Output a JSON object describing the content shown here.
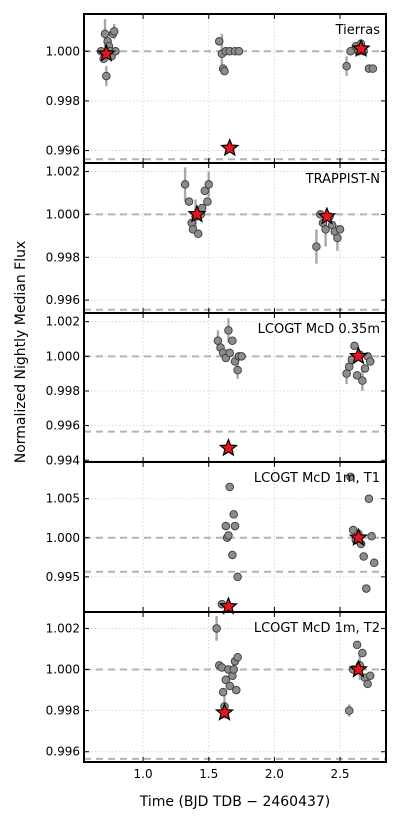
{
  "figure": {
    "xlabel": "Time (BJD TDB − 2460437)",
    "ylabel": "Normalized Nightly Median Flux"
  },
  "chart_data": [
    {
      "type": "scatter",
      "title": "Tierras",
      "xlim": [
        0.55,
        2.85
      ],
      "ylim": [
        0.9955,
        1.0015
      ],
      "yticks": [
        "0.996",
        "0.998",
        "1.000"
      ],
      "xticks": [],
      "reference_lines": [
        1.0,
        0.99565
      ],
      "points": [
        [
          0.68,
          1.0
        ],
        [
          0.7,
          0.9997
        ],
        [
          0.71,
          1.0007
        ],
        [
          0.72,
          0.999
        ],
        [
          0.73,
          1.0004
        ],
        [
          0.74,
          1.0002
        ],
        [
          0.75,
          1.0
        ],
        [
          0.76,
          0.9998
        ],
        [
          0.77,
          1.0007
        ],
        [
          0.78,
          1.0008
        ],
        [
          0.79,
          1.0
        ],
        [
          1.58,
          1.0004
        ],
        [
          1.6,
          0.9999
        ],
        [
          1.61,
          0.9993
        ],
        [
          1.62,
          0.9992
        ],
        [
          1.63,
          1.0
        ],
        [
          1.66,
          1.0
        ],
        [
          1.7,
          1.0
        ],
        [
          1.73,
          1.0
        ],
        [
          2.55,
          0.9994
        ],
        [
          2.58,
          1.0
        ],
        [
          2.62,
          1.0002
        ],
        [
          2.64,
          1.0
        ],
        [
          2.66,
          1.0003
        ],
        [
          2.68,
          1.0
        ],
        [
          2.72,
          0.9993
        ],
        [
          2.75,
          0.9993
        ]
      ],
      "errors": [
        [
          0.71,
          1.0007,
          0.0006
        ],
        [
          0.72,
          0.999,
          0.0004
        ],
        [
          0.78,
          1.0008,
          0.0003
        ],
        [
          1.6,
          0.9999,
          0.0008
        ],
        [
          2.55,
          0.9994,
          0.0004
        ]
      ],
      "medians": [
        [
          0.72,
          0.9999
        ],
        [
          1.66,
          0.9961
        ],
        [
          2.66,
          1.0001
        ]
      ]
    },
    {
      "type": "scatter",
      "title": "TRAPPIST-N",
      "xlim": [
        0.55,
        2.85
      ],
      "ylim": [
        0.9954,
        1.0024
      ],
      "yticks": [
        "0.996",
        "0.998",
        "1.000",
        "1.002"
      ],
      "xticks": [],
      "reference_lines": [
        1.0,
        0.99555
      ],
      "points": [
        [
          1.32,
          1.0014
        ],
        [
          1.35,
          1.0006
        ],
        [
          1.37,
          0.9996
        ],
        [
          1.38,
          0.9993
        ],
        [
          1.4,
          0.9999
        ],
        [
          1.42,
          0.9991
        ],
        [
          1.44,
          1.0
        ],
        [
          1.45,
          1.0003
        ],
        [
          1.47,
          1.0011
        ],
        [
          1.49,
          1.0006
        ],
        [
          1.5,
          1.0014
        ],
        [
          2.32,
          0.9985
        ],
        [
          2.35,
          1.0
        ],
        [
          2.37,
          0.9996
        ],
        [
          2.39,
          0.9993
        ],
        [
          2.4,
          0.9999
        ],
        [
          2.42,
          0.9999
        ],
        [
          2.44,
          0.9995
        ],
        [
          2.46,
          0.9992
        ],
        [
          2.48,
          0.9989
        ],
        [
          2.5,
          0.9993
        ]
      ],
      "errors": [
        [
          1.32,
          1.0014,
          0.0008
        ],
        [
          1.4,
          0.9999,
          0.0008
        ],
        [
          1.5,
          1.0014,
          0.0006
        ],
        [
          2.32,
          0.9985,
          0.0008
        ],
        [
          2.39,
          0.9993,
          0.0008
        ],
        [
          2.48,
          0.9989,
          0.0006
        ]
      ],
      "medians": [
        [
          1.41,
          1.0
        ],
        [
          2.4,
          0.9999
        ]
      ]
    },
    {
      "type": "scatter",
      "title": "LCOGT McD 0.35m",
      "xlim": [
        0.55,
        2.85
      ],
      "ylim": [
        0.9939,
        1.0025
      ],
      "yticks": [
        "0.994",
        "0.996",
        "0.998",
        "1.000",
        "1.002"
      ],
      "xticks": [],
      "reference_lines": [
        1.0,
        0.99565
      ],
      "points": [
        [
          1.57,
          1.0009
        ],
        [
          1.59,
          1.0005
        ],
        [
          1.61,
          1.0002
        ],
        [
          1.63,
          0.9999
        ],
        [
          1.65,
          1.0015
        ],
        [
          1.66,
          1.0002
        ],
        [
          1.68,
          1.0009
        ],
        [
          1.7,
          0.9997
        ],
        [
          1.72,
          0.9992
        ],
        [
          1.73,
          1.0
        ],
        [
          1.75,
          1.0
        ],
        [
          2.55,
          0.999
        ],
        [
          2.57,
          0.9994
        ],
        [
          2.59,
          0.9998
        ],
        [
          2.61,
          1.0006
        ],
        [
          2.63,
          0.9989
        ],
        [
          2.65,
          1.0001
        ],
        [
          2.67,
          0.9986
        ],
        [
          2.69,
          0.9993
        ],
        [
          2.71,
          1.0
        ],
        [
          2.73,
          0.9997
        ]
      ],
      "errors": [
        [
          1.57,
          1.0009,
          0.0006
        ],
        [
          1.65,
          1.0015,
          0.0007
        ],
        [
          1.72,
          0.9992,
          0.0005
        ],
        [
          2.55,
          0.999,
          0.0006
        ],
        [
          2.67,
          0.9986,
          0.0006
        ]
      ],
      "medians": [
        [
          1.65,
          0.9947
        ],
        [
          2.64,
          1.0
        ]
      ]
    },
    {
      "type": "scatter",
      "title": "LCOGT McD 1m, T1",
      "xlim": [
        0.55,
        2.85
      ],
      "ylim": [
        0.9905,
        1.0097
      ],
      "yticks": [
        "0.995",
        "1.000",
        "1.005"
      ],
      "xticks": [],
      "reference_lines": [
        1.0,
        0.99565
      ],
      "points": [
        [
          1.6,
          0.9915
        ],
        [
          1.63,
          1.0015
        ],
        [
          1.64,
          1.0
        ],
        [
          1.65,
          1.0003
        ],
        [
          1.66,
          1.0065
        ],
        [
          1.68,
          0.9978
        ],
        [
          1.69,
          1.003
        ],
        [
          1.7,
          1.0015
        ],
        [
          1.72,
          0.995
        ],
        [
          2.58,
          1.0078
        ],
        [
          2.6,
          1.001
        ],
        [
          2.62,
          0.9997
        ],
        [
          2.64,
          1.0005
        ],
        [
          2.66,
          0.9992
        ],
        [
          2.68,
          0.9976
        ],
        [
          2.7,
          0.9935
        ],
        [
          2.72,
          1.005
        ],
        [
          2.74,
          1.0002
        ],
        [
          2.76,
          0.9968
        ]
      ],
      "errors": [],
      "medians": [
        [
          1.65,
          0.9912
        ],
        [
          2.64,
          1.0
        ]
      ]
    },
    {
      "type": "scatter",
      "title": "LCOGT McD 1m, T2",
      "xlim": [
        0.55,
        2.85
      ],
      "ylim": [
        0.9955,
        1.0028
      ],
      "yticks": [
        "0.996",
        "0.998",
        "1.000",
        "1.002"
      ],
      "xticks": [
        "1.0",
        "1.5",
        "2.0",
        "2.5"
      ],
      "reference_lines": [
        1.0,
        0.99565
      ],
      "points": [
        [
          1.56,
          1.002
        ],
        [
          1.58,
          1.0002
        ],
        [
          1.6,
          1.0001
        ],
        [
          1.61,
          0.9989
        ],
        [
          1.62,
          0.9982
        ],
        [
          1.63,
          0.9995
        ],
        [
          1.65,
          1.0
        ],
        [
          1.66,
          0.9992
        ],
        [
          1.68,
          0.9997
        ],
        [
          1.69,
          1.0
        ],
        [
          1.7,
          1.0004
        ],
        [
          1.71,
          0.999
        ],
        [
          1.72,
          1.0006
        ],
        [
          2.57,
          0.998
        ],
        [
          2.6,
          1.0
        ],
        [
          2.63,
          1.0012
        ],
        [
          2.65,
          1.0002
        ],
        [
          2.67,
          1.0008
        ],
        [
          2.69,
          0.9996
        ],
        [
          2.71,
          0.9993
        ],
        [
          2.73,
          0.9997
        ]
      ],
      "errors": [
        [
          1.56,
          1.002,
          0.0006
        ],
        [
          1.62,
          0.9982,
          0.0006
        ],
        [
          1.69,
          1.0,
          0.0005
        ],
        [
          2.57,
          0.998,
          0.0003
        ],
        [
          2.65,
          1.0002,
          0.0007
        ]
      ],
      "medians": [
        [
          1.62,
          0.9979
        ],
        [
          2.64,
          1.0
        ]
      ]
    }
  ]
}
